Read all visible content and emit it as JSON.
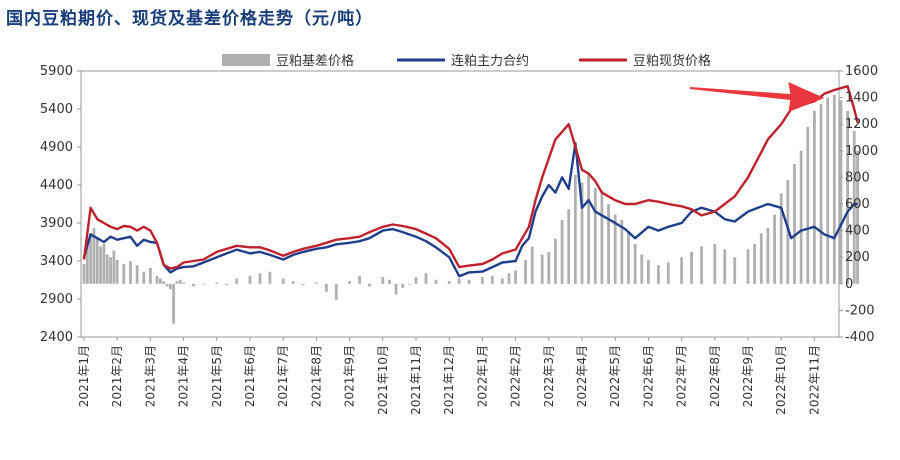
{
  "chart_data": {
    "type": "bar+line",
    "title": "国内豆粕期价、现货及基差价格走势（元/吨）",
    "categories": [
      "2021年1月",
      "2021年2月",
      "2021年3月",
      "2021年4月",
      "2021年5月",
      "2021年6月",
      "2021年7月",
      "2021年8月",
      "2021年9月",
      "2021年10月",
      "2021年11月",
      "2021年12月",
      "2022年1月",
      "2022年2月",
      "2022年3月",
      "2022年4月",
      "2022年5月",
      "2022年6月",
      "2022年7月",
      "2022年8月",
      "2022年9月",
      "2022年10月",
      "2022年11月"
    ],
    "left_axis": {
      "ylim": [
        2400,
        5900
      ],
      "ticks": [
        "5900",
        "5400",
        "4900",
        "4400",
        "3900",
        "3400",
        "2900",
        "2400"
      ]
    },
    "right_axis": {
      "ylim": [
        -400,
        1600
      ],
      "ticks": [
        "1600",
        "1400",
        "1200",
        "1000",
        "800",
        "600",
        "400",
        "200",
        "0",
        "-200",
        "-400"
      ]
    },
    "legend": {
      "placement": "top",
      "entries": [
        "豆粕基差价格",
        "连粕主力合约",
        "豆粕现货价格"
      ]
    },
    "annotation": {
      "type": "red-arrow",
      "points_to": "豆粕现货价格 peak, 2022年11月"
    },
    "colors": {
      "basis": "#b0b0b0",
      "futures": "#1f3f8c",
      "spot": "#c0212b",
      "title": "#1b3f7a",
      "arrow": "#e8383d"
    },
    "series": [
      {
        "name": "豆粕基差价格",
        "axis": "right",
        "kind": "bar",
        "x": [
          0,
          0.1,
          0.2,
          0.3,
          0.4,
          0.5,
          0.6,
          0.7,
          0.8,
          0.9,
          1.0,
          1.2,
          1.4,
          1.6,
          1.8,
          2.0,
          2.2,
          2.3,
          2.4,
          2.5,
          2.6,
          2.7,
          2.8,
          2.9,
          3.0,
          3.3,
          3.6,
          4.0,
          4.3,
          4.6,
          5.0,
          5.3,
          5.6,
          6.0,
          6.3,
          6.6,
          7.0,
          7.3,
          7.6,
          8.0,
          8.3,
          8.6,
          9.0,
          9.2,
          9.4,
          9.6,
          9.8,
          10.0,
          10.3,
          10.6,
          11.0,
          11.3,
          11.6,
          12.0,
          12.3,
          12.6,
          12.8,
          13.0,
          13.3,
          13.5,
          13.8,
          14.0,
          14.2,
          14.4,
          14.6,
          14.8,
          15.0,
          15.2,
          15.4,
          15.6,
          15.8,
          16.0,
          16.2,
          16.4,
          16.6,
          16.8,
          17.0,
          17.3,
          17.6,
          18.0,
          18.3,
          18.6,
          19.0,
          19.3,
          19.6,
          20.0,
          20.2,
          20.4,
          20.6,
          20.8,
          21.0,
          21.2,
          21.4,
          21.6,
          21.8,
          22.0,
          22.2,
          22.4,
          22.6,
          22.8,
          23.0,
          23.2,
          23.3
        ],
        "values": [
          150,
          300,
          380,
          420,
          350,
          280,
          300,
          220,
          200,
          250,
          180,
          150,
          170,
          140,
          90,
          120,
          60,
          40,
          20,
          -20,
          -40,
          -300,
          20,
          30,
          10,
          -20,
          0,
          10,
          -10,
          40,
          60,
          80,
          90,
          40,
          20,
          -10,
          10,
          -60,
          -120,
          20,
          60,
          -20,
          50,
          30,
          -80,
          -30,
          0,
          50,
          80,
          30,
          20,
          40,
          30,
          50,
          60,
          40,
          80,
          100,
          180,
          280,
          220,
          240,
          340,
          480,
          560,
          820,
          760,
          820,
          720,
          700,
          600,
          520,
          480,
          380,
          300,
          220,
          180,
          140,
          160,
          200,
          240,
          280,
          300,
          260,
          200,
          260,
          300,
          380,
          420,
          520,
          680,
          780,
          900,
          1000,
          1180,
          1300,
          1350,
          1400,
          1420,
          1380,
          1300,
          1150,
          1000
        ]
      },
      {
        "name": "连粕主力合约",
        "axis": "left",
        "kind": "line",
        "x": [
          0,
          0.2,
          0.4,
          0.6,
          0.8,
          1.0,
          1.2,
          1.4,
          1.6,
          1.8,
          2.0,
          2.2,
          2.4,
          2.6,
          2.8,
          3.0,
          3.3,
          3.6,
          4.0,
          4.3,
          4.6,
          5.0,
          5.3,
          5.6,
          6.0,
          6.3,
          6.6,
          7.0,
          7.3,
          7.6,
          8.0,
          8.3,
          8.6,
          9.0,
          9.3,
          9.6,
          10.0,
          10.3,
          10.6,
          11.0,
          11.3,
          11.6,
          12.0,
          12.3,
          12.6,
          13.0,
          13.2,
          13.4,
          13.6,
          13.8,
          14.0,
          14.2,
          14.4,
          14.6,
          14.8,
          15.0,
          15.2,
          15.4,
          15.6,
          15.8,
          16.0,
          16.3,
          16.6,
          17.0,
          17.3,
          17.6,
          18.0,
          18.3,
          18.6,
          19.0,
          19.3,
          19.6,
          20.0,
          20.3,
          20.6,
          21.0,
          21.3,
          21.6,
          22.0,
          22.3,
          22.6,
          23.0,
          23.2,
          23.3
        ],
        "values": [
          3450,
          3750,
          3700,
          3650,
          3720,
          3680,
          3700,
          3720,
          3600,
          3680,
          3650,
          3640,
          3350,
          3250,
          3300,
          3320,
          3330,
          3380,
          3450,
          3500,
          3550,
          3500,
          3520,
          3480,
          3420,
          3480,
          3520,
          3560,
          3580,
          3620,
          3640,
          3660,
          3700,
          3800,
          3820,
          3780,
          3720,
          3660,
          3580,
          3450,
          3200,
          3250,
          3260,
          3320,
          3380,
          3400,
          3600,
          3700,
          4050,
          4250,
          4400,
          4300,
          4500,
          4350,
          4950,
          4100,
          4200,
          4050,
          4000,
          3950,
          3900,
          3820,
          3700,
          3850,
          3800,
          3850,
          3900,
          4050,
          4100,
          4050,
          3950,
          3920,
          4050,
          4100,
          4150,
          4100,
          3700,
          3800,
          3850,
          3750,
          3700,
          4050,
          4150,
          4150
        ]
      },
      {
        "name": "豆粕现货价格",
        "axis": "left",
        "kind": "line",
        "x": [
          0,
          0.2,
          0.4,
          0.6,
          0.8,
          1.0,
          1.2,
          1.4,
          1.6,
          1.8,
          2.0,
          2.2,
          2.4,
          2.6,
          2.8,
          3.0,
          3.3,
          3.6,
          4.0,
          4.3,
          4.6,
          5.0,
          5.3,
          5.6,
          6.0,
          6.3,
          6.6,
          7.0,
          7.3,
          7.6,
          8.0,
          8.3,
          8.6,
          9.0,
          9.3,
          9.6,
          10.0,
          10.3,
          10.6,
          11.0,
          11.3,
          11.6,
          12.0,
          12.3,
          12.6,
          13.0,
          13.2,
          13.4,
          13.6,
          13.8,
          14.0,
          14.2,
          14.4,
          14.6,
          14.8,
          15.0,
          15.2,
          15.4,
          15.6,
          15.8,
          16.0,
          16.3,
          16.6,
          17.0,
          17.3,
          17.6,
          18.0,
          18.3,
          18.6,
          19.0,
          19.3,
          19.6,
          20.0,
          20.3,
          20.6,
          21.0,
          21.3,
          21.6,
          22.0,
          22.3,
          22.6,
          23.0,
          23.2,
          23.3
        ],
        "values": [
          3420,
          4100,
          3950,
          3900,
          3850,
          3820,
          3860,
          3850,
          3800,
          3850,
          3800,
          3640,
          3350,
          3300,
          3320,
          3380,
          3400,
          3420,
          3520,
          3560,
          3600,
          3580,
          3580,
          3540,
          3470,
          3520,
          3560,
          3600,
          3640,
          3680,
          3700,
          3720,
          3780,
          3850,
          3880,
          3860,
          3820,
          3760,
          3700,
          3560,
          3320,
          3340,
          3360,
          3420,
          3500,
          3550,
          3700,
          3850,
          4200,
          4500,
          4750,
          5000,
          5100,
          5200,
          4900,
          4600,
          4550,
          4450,
          4300,
          4250,
          4200,
          4150,
          4150,
          4200,
          4180,
          4150,
          4120,
          4080,
          4000,
          4050,
          4150,
          4250,
          4500,
          4750,
          5000,
          5200,
          5400,
          5450,
          5500,
          5600,
          5650,
          5700,
          5400,
          5220
        ]
      }
    ]
  }
}
